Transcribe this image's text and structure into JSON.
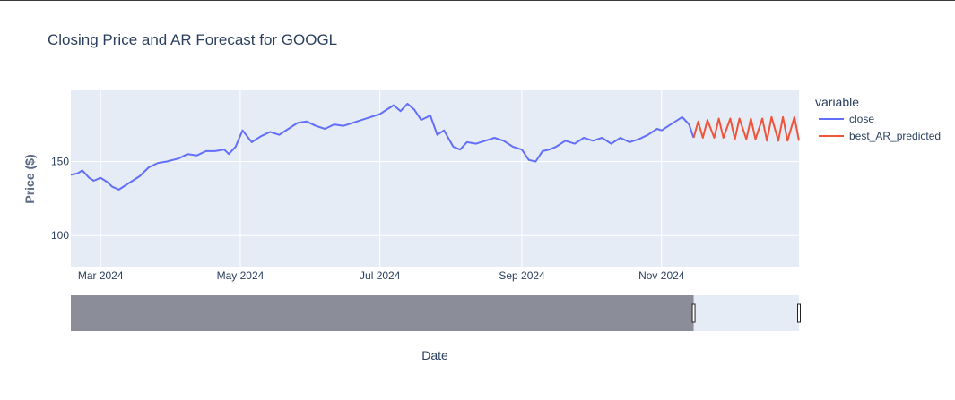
{
  "chart_data": {
    "type": "line",
    "title": "Closing Price and AR Forecast for GOOGL",
    "xlabel": "Date",
    "ylabel": "Price ($)",
    "x_tick_labels": [
      "Mar 2024",
      "May 2024",
      "Jul 2024",
      "Sep 2024",
      "Nov 2024"
    ],
    "x_tick_dates": [
      "2024-03-01",
      "2024-05-01",
      "2024-07-01",
      "2024-09-01",
      "2024-11-01"
    ],
    "y_ticks": [
      100,
      150
    ],
    "xlim": [
      "2024-02-17",
      "2024-12-31"
    ],
    "ylim": [
      79,
      198
    ],
    "grid": true,
    "legend_title": "variable",
    "legend_position": "right",
    "range_slider": true,
    "range_slider_selection": [
      "2024-02-17",
      "2024-11-15"
    ],
    "series": [
      {
        "name": "close",
        "color": "#636efa",
        "x": [
          "2024-02-17",
          "2024-02-20",
          "2024-02-22",
          "2024-02-25",
          "2024-02-27",
          "2024-03-01",
          "2024-03-04",
          "2024-03-06",
          "2024-03-09",
          "2024-03-12",
          "2024-03-15",
          "2024-03-18",
          "2024-03-22",
          "2024-03-26",
          "2024-03-30",
          "2024-04-04",
          "2024-04-08",
          "2024-04-12",
          "2024-04-16",
          "2024-04-20",
          "2024-04-24",
          "2024-04-26",
          "2024-04-29",
          "2024-05-02",
          "2024-05-06",
          "2024-05-10",
          "2024-05-14",
          "2024-05-18",
          "2024-05-22",
          "2024-05-26",
          "2024-05-30",
          "2024-06-03",
          "2024-06-07",
          "2024-06-11",
          "2024-06-15",
          "2024-06-19",
          "2024-06-23",
          "2024-06-27",
          "2024-07-01",
          "2024-07-04",
          "2024-07-07",
          "2024-07-10",
          "2024-07-13",
          "2024-07-16",
          "2024-07-19",
          "2024-07-23",
          "2024-07-26",
          "2024-07-29",
          "2024-08-02",
          "2024-08-05",
          "2024-08-08",
          "2024-08-12",
          "2024-08-16",
          "2024-08-20",
          "2024-08-24",
          "2024-08-28",
          "2024-09-01",
          "2024-09-04",
          "2024-09-07",
          "2024-09-10",
          "2024-09-13",
          "2024-09-16",
          "2024-09-20",
          "2024-09-24",
          "2024-09-28",
          "2024-10-02",
          "2024-10-06",
          "2024-10-10",
          "2024-10-14",
          "2024-10-18",
          "2024-10-22",
          "2024-10-26",
          "2024-10-30",
          "2024-11-01",
          "2024-11-04",
          "2024-11-07",
          "2024-11-10",
          "2024-11-13",
          "2024-11-15"
        ],
        "y": [
          141,
          142,
          144,
          139,
          137,
          139,
          136,
          133,
          131,
          134,
          137,
          140,
          146,
          149,
          150,
          152,
          155,
          154,
          157,
          157,
          158,
          155,
          160,
          171,
          163,
          167,
          170,
          168,
          172,
          176,
          177,
          174,
          172,
          175,
          174,
          176,
          178,
          180,
          182,
          185,
          188,
          184,
          189,
          185,
          178,
          181,
          168,
          171,
          160,
          158,
          163,
          162,
          164,
          166,
          164,
          160,
          158,
          151,
          150,
          157,
          158,
          160,
          164,
          162,
          166,
          164,
          166,
          162,
          166,
          163,
          165,
          168,
          172,
          171,
          174,
          177,
          180,
          175,
          166
        ],
        "x_slider": []
      },
      {
        "name": "best_AR_predicted",
        "color": "#ef553b",
        "x": [
          "2024-11-15",
          "2024-11-17",
          "2024-11-19",
          "2024-11-21",
          "2024-11-24",
          "2024-11-26",
          "2024-11-28",
          "2024-12-01",
          "2024-12-03",
          "2024-12-05",
          "2024-12-08",
          "2024-12-10",
          "2024-12-12",
          "2024-12-15",
          "2024-12-17",
          "2024-12-19",
          "2024-12-22",
          "2024-12-24",
          "2024-12-26",
          "2024-12-29",
          "2024-12-31"
        ],
        "y": [
          166,
          177,
          166,
          178,
          166,
          179,
          166,
          179,
          165,
          179,
          165,
          179,
          165,
          179,
          164,
          180,
          164,
          180,
          164,
          180,
          164
        ]
      }
    ]
  }
}
